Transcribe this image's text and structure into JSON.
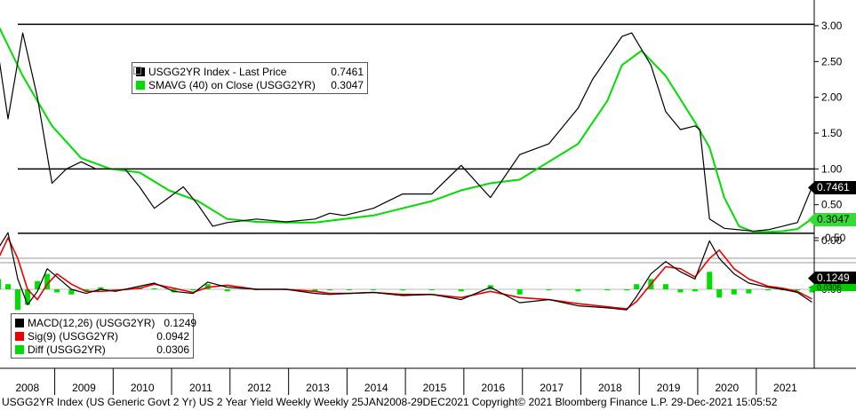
{
  "chart_data": [
    {
      "type": "line",
      "title": "",
      "yticks": [
        "3.00",
        "2.50",
        "2.00",
        "1.50",
        "1.00",
        "0.50",
        "0.00"
      ],
      "ylim": [
        -0.05,
        3.25
      ],
      "x_range": [
        "2008-01-25",
        "2021-12-29"
      ],
      "x_tick_labels": [
        "2008",
        "2009",
        "2010",
        "2011",
        "2012",
        "2013",
        "2014",
        "2015",
        "2016",
        "2017",
        "2018",
        "2019",
        "2020",
        "2021"
      ],
      "reference_lines": [
        3.02,
        1.0,
        0.1
      ],
      "legend": [
        {
          "name": "USGG2YR Index  - Last Price",
          "value": "0.7461",
          "color": "#000000"
        },
        {
          "name": "SMAVG (40)  on Close (USGG2YR)",
          "value": "0.3047",
          "color": "#00dd00"
        }
      ],
      "last_value_tags": [
        {
          "text": "0.7461",
          "bg": "#000000",
          "fg": "#ffffff"
        },
        {
          "text": "0.3047",
          "bg": "#33dd33",
          "fg": "#000000"
        }
      ],
      "series": [
        {
          "name": "USGG2YR Index  - Last Price",
          "color": "#000000",
          "x": [
            "2008-01",
            "2008-03",
            "2008-06",
            "2008-09",
            "2008-12",
            "2009-03",
            "2009-06",
            "2009-09",
            "2009-12",
            "2010-03",
            "2010-06",
            "2010-09",
            "2010-12",
            "2011-03",
            "2011-06",
            "2011-09",
            "2011-12",
            "2012-06",
            "2012-12",
            "2013-06",
            "2013-09",
            "2013-12",
            "2014-06",
            "2014-12",
            "2015-06",
            "2015-12",
            "2016-06",
            "2016-12",
            "2017-06",
            "2017-12",
            "2018-03",
            "2018-06",
            "2018-09",
            "2018-11",
            "2019-03",
            "2019-06",
            "2019-09",
            "2019-12",
            "2020-01",
            "2020-03",
            "2020-06",
            "2020-12",
            "2021-03",
            "2021-06",
            "2021-09",
            "2021-12"
          ],
          "values": [
            2.6,
            1.7,
            2.9,
            2.0,
            0.8,
            1.0,
            1.1,
            1.0,
            1.0,
            1.0,
            0.75,
            0.45,
            0.6,
            0.75,
            0.5,
            0.2,
            0.25,
            0.3,
            0.26,
            0.3,
            0.38,
            0.35,
            0.45,
            0.65,
            0.65,
            1.05,
            0.6,
            1.2,
            1.35,
            1.85,
            2.25,
            2.55,
            2.85,
            2.9,
            2.45,
            1.8,
            1.55,
            1.6,
            1.55,
            0.3,
            0.17,
            0.13,
            0.15,
            0.2,
            0.25,
            0.7461
          ]
        },
        {
          "name": "SMAVG (40)  on Close (USGG2YR)",
          "color": "#00dd00",
          "x": [
            "2008-01",
            "2008-06",
            "2008-12",
            "2009-06",
            "2009-12",
            "2010-06",
            "2010-12",
            "2011-06",
            "2011-12",
            "2012-06",
            "2012-12",
            "2013-06",
            "2013-12",
            "2014-06",
            "2014-12",
            "2015-06",
            "2015-12",
            "2016-06",
            "2016-12",
            "2017-06",
            "2017-12",
            "2018-06",
            "2018-09",
            "2019-01",
            "2019-06",
            "2019-12",
            "2020-03",
            "2020-06",
            "2020-09",
            "2020-12",
            "2021-03",
            "2021-06",
            "2021-09",
            "2021-12"
          ],
          "values": [
            3.0,
            2.3,
            1.6,
            1.15,
            1.0,
            0.95,
            0.7,
            0.55,
            0.3,
            0.26,
            0.25,
            0.25,
            0.3,
            0.35,
            0.45,
            0.55,
            0.7,
            0.8,
            0.85,
            1.1,
            1.35,
            1.95,
            2.45,
            2.65,
            2.3,
            1.65,
            1.3,
            0.6,
            0.2,
            0.12,
            0.12,
            0.13,
            0.16,
            0.3047
          ]
        }
      ]
    },
    {
      "type": "line",
      "yticks": [
        "0.00",
        "-0.50"
      ],
      "ylim": [
        -0.75,
        0.35
      ],
      "legend": [
        {
          "name": "MACD(12,26) (USGG2YR)",
          "value": "0.1249",
          "color": "#000000"
        },
        {
          "name": "Sig(9) (USGG2YR)",
          "value": "0.0942",
          "color": "#ee0000"
        },
        {
          "name": "Diff (USGG2YR)",
          "value": "0.0306",
          "color": "#00dd00"
        }
      ],
      "last_value_tags": [
        {
          "text": "0.1249",
          "bg": "#000000",
          "fg": "#ffffff"
        },
        {
          "text": "0.0306",
          "bg": "#00cc00",
          "fg": "#000000"
        }
      ],
      "series": [
        {
          "name": "MACD(12,26) (USGG2YR)",
          "color": "#000000",
          "x": [
            "2008-01",
            "2008-03",
            "2008-05",
            "2008-07",
            "2008-09",
            "2008-11",
            "2009-01",
            "2009-04",
            "2009-07",
            "2009-10",
            "2010-01",
            "2010-06",
            "2010-09",
            "2011-01",
            "2011-05",
            "2011-08",
            "2011-12",
            "2012-06",
            "2012-12",
            "2013-06",
            "2013-09",
            "2014-01",
            "2014-06",
            "2014-12",
            "2015-06",
            "2015-12",
            "2016-06",
            "2016-12",
            "2017-06",
            "2017-12",
            "2018-06",
            "2018-10",
            "2018-12",
            "2019-03",
            "2019-06",
            "2019-09",
            "2019-12",
            "2020-03",
            "2020-05",
            "2020-08",
            "2020-11",
            "2021-03",
            "2021-06",
            "2021-09",
            "2021-12"
          ],
          "values": [
            -0.4,
            -0.55,
            -0.1,
            0.15,
            0.02,
            -0.2,
            -0.12,
            0.0,
            0.04,
            0.0,
            0.02,
            -0.03,
            -0.06,
            0.02,
            0.04,
            -0.07,
            -0.02,
            0.0,
            0.0,
            0.04,
            0.05,
            0.04,
            0.03,
            0.06,
            0.05,
            0.1,
            -0.02,
            0.13,
            0.1,
            0.16,
            0.18,
            0.2,
            0.07,
            -0.15,
            -0.27,
            -0.17,
            -0.1,
            -0.47,
            -0.3,
            -0.15,
            -0.06,
            -0.02,
            0.0,
            0.03,
            0.1249
          ]
        },
        {
          "name": "Sig(9) (USGG2YR)",
          "color": "#ee0000",
          "x": [
            "2008-01",
            "2008-03",
            "2008-05",
            "2008-07",
            "2008-09",
            "2008-11",
            "2009-01",
            "2009-04",
            "2009-07",
            "2009-10",
            "2010-01",
            "2010-06",
            "2010-09",
            "2011-01",
            "2011-05",
            "2011-08",
            "2011-12",
            "2012-06",
            "2012-12",
            "2013-06",
            "2013-09",
            "2014-01",
            "2014-06",
            "2014-12",
            "2015-06",
            "2015-12",
            "2016-06",
            "2016-12",
            "2017-06",
            "2017-12",
            "2018-06",
            "2018-10",
            "2018-12",
            "2019-03",
            "2019-06",
            "2019-09",
            "2019-12",
            "2020-03",
            "2020-05",
            "2020-08",
            "2020-11",
            "2021-03",
            "2021-06",
            "2021-09",
            "2021-12"
          ],
          "values": [
            -0.3,
            -0.5,
            -0.3,
            0.0,
            0.1,
            -0.05,
            -0.15,
            -0.05,
            0.02,
            0.02,
            0.01,
            -0.01,
            -0.05,
            -0.01,
            0.03,
            -0.02,
            -0.04,
            0.0,
            0.0,
            0.02,
            0.04,
            0.04,
            0.03,
            0.05,
            0.05,
            0.08,
            0.02,
            0.08,
            0.1,
            0.14,
            0.17,
            0.19,
            0.12,
            -0.05,
            -0.22,
            -0.2,
            -0.12,
            -0.3,
            -0.38,
            -0.2,
            -0.1,
            -0.03,
            -0.01,
            0.02,
            0.0942
          ]
        },
        {
          "name": "Diff (USGG2YR)",
          "color": "#00dd00",
          "style": "histogram",
          "x": [
            "2008-01",
            "2008-03",
            "2008-05",
            "2008-07",
            "2008-09",
            "2008-11",
            "2009-01",
            "2009-04",
            "2009-07",
            "2009-10",
            "2010-01",
            "2010-06",
            "2010-09",
            "2011-01",
            "2011-05",
            "2011-08",
            "2011-12",
            "2012-06",
            "2012-12",
            "2013-06",
            "2013-09",
            "2014-01",
            "2014-06",
            "2014-12",
            "2015-06",
            "2015-12",
            "2016-06",
            "2016-12",
            "2017-06",
            "2017-12",
            "2018-06",
            "2018-10",
            "2018-12",
            "2019-03",
            "2019-06",
            "2019-09",
            "2019-12",
            "2020-03",
            "2020-05",
            "2020-08",
            "2020-11",
            "2021-03",
            "2021-06",
            "2021-09",
            "2021-12"
          ],
          "values": [
            -0.1,
            -0.05,
            0.2,
            0.15,
            -0.08,
            -0.15,
            0.03,
            0.05,
            0.02,
            -0.02,
            0.01,
            -0.02,
            -0.01,
            0.03,
            0.01,
            -0.05,
            0.02,
            0.0,
            0.0,
            0.02,
            0.01,
            0.0,
            0.0,
            0.01,
            0.0,
            0.02,
            -0.04,
            0.05,
            0.0,
            0.02,
            0.01,
            0.01,
            -0.05,
            -0.1,
            -0.05,
            0.03,
            0.02,
            -0.17,
            0.08,
            0.05,
            0.04,
            0.01,
            0.01,
            0.01,
            0.0306
          ]
        }
      ]
    }
  ],
  "footer_text": "USGG2YR Index (US Generic Govt 2 Yr) US 2 Year Yield Weekly  Weekly 25JAN2008-29DEC2021  Copyright© 2021 Bloomberg Finance L.P.  29-Dec-2021 15:05:52",
  "colors": {
    "price": "#000000",
    "smavg": "#00dd00",
    "macd": "#000000",
    "signal": "#ee0000",
    "diff": "#00dd00",
    "pane_border": "#000000"
  }
}
